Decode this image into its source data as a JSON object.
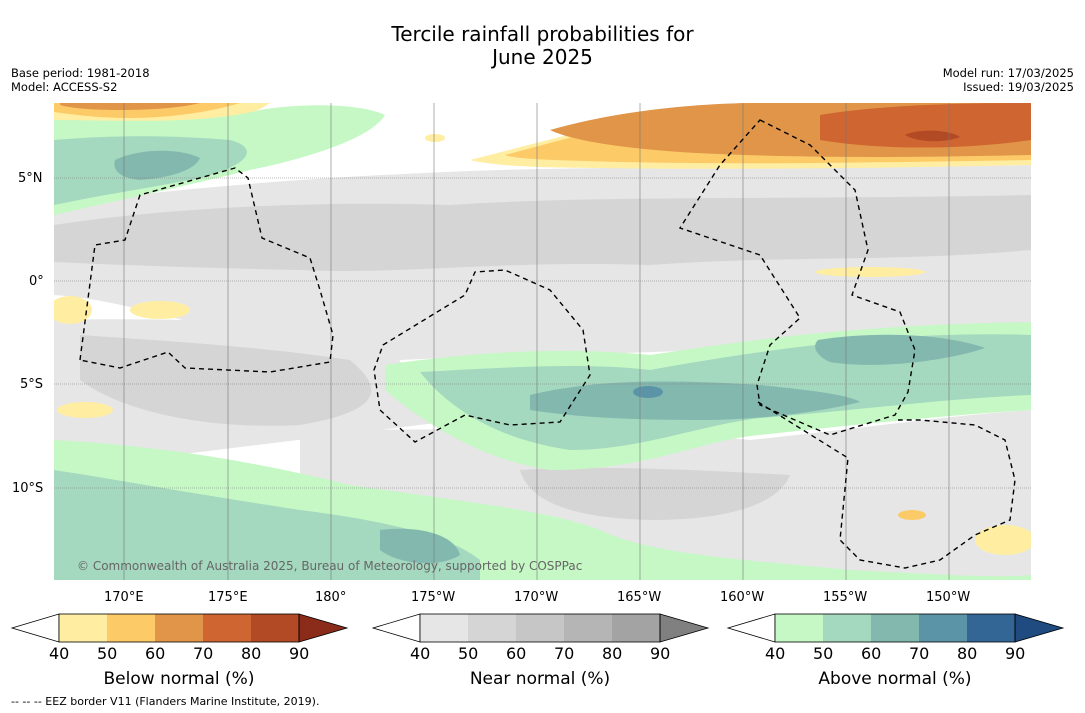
{
  "title_line1": "Tercile rainfall probabilities for",
  "title_line2": "June 2025",
  "meta_left": {
    "base_period": "Base period: 1981-2018",
    "model": "Model: ACCESS-S2"
  },
  "meta_right": {
    "model_run": "Model run: 17/03/2025",
    "issued": "Issued: 19/03/2025"
  },
  "lat_labels": [
    "5°N",
    "0°",
    "5°S",
    "10°S"
  ],
  "lon_labels": [
    "170°E",
    "175°E",
    "180°",
    "175°W",
    "170°W",
    "165°W",
    "160°W",
    "155°W",
    "150°W"
  ],
  "copyright": "© Commonwealth of Australia 2025, Bureau of Meteorology, supported by COSPPac",
  "colorbars": [
    {
      "label": "Below normal (%)",
      "ticks": [
        "40",
        "50",
        "60",
        "70",
        "80",
        "90"
      ],
      "colors": [
        "#ffeea1",
        "#fdca68",
        "#e09548",
        "#cf6530",
        "#b24a26",
        "#8b2c1b"
      ]
    },
    {
      "label": "Near normal (%)",
      "ticks": [
        "40",
        "50",
        "60",
        "70",
        "80",
        "90"
      ],
      "colors": [
        "#e6e6e6",
        "#d5d5d5",
        "#c6c6c6",
        "#b5b5b5",
        "#a3a3a3",
        "#808080"
      ]
    },
    {
      "label": "Above normal (%)",
      "ticks": [
        "40",
        "50",
        "60",
        "70",
        "80",
        "90"
      ],
      "colors": [
        "#c5f8c5",
        "#a4d8bf",
        "#82b8ae",
        "#5b94a7",
        "#336695",
        "#1f4b80"
      ]
    }
  ],
  "footer": "-- -- -- EEZ border V11 (Flanders Marine Institute, 2019).",
  "colors": {
    "eez": "#000000",
    "grid": "#777777"
  }
}
